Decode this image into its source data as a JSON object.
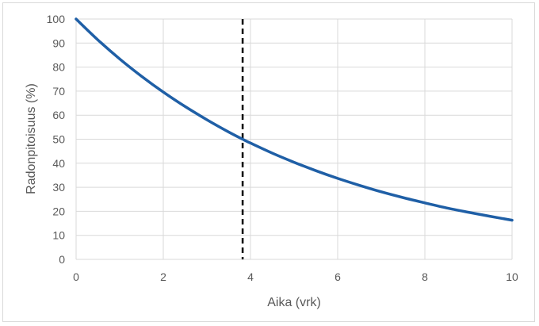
{
  "chart_data": {
    "type": "line",
    "title": "",
    "xlabel": "Aika (vrk)",
    "ylabel": "Radonpitoisuus (%)",
    "xlim": [
      0,
      10
    ],
    "ylim": [
      0,
      100
    ],
    "x_ticks": [
      "0",
      "2",
      "4",
      "6",
      "8",
      "10"
    ],
    "y_ticks": [
      "0",
      "10",
      "20",
      "30",
      "40",
      "50",
      "60",
      "70",
      "80",
      "90",
      "100"
    ],
    "grid": true,
    "legend": "none",
    "series": [
      {
        "color": "#1f5fa6",
        "style": "smooth",
        "x": [
          0,
          0.5,
          1,
          1.5,
          2,
          2.5,
          3,
          3.5,
          3.82,
          4,
          4.5,
          5,
          5.5,
          6,
          6.5,
          7,
          7.5,
          8,
          8.5,
          9,
          9.5,
          10
        ],
        "y": [
          100,
          91.3,
          83.4,
          76.2,
          69.6,
          63.6,
          58.1,
          53.0,
          50.0,
          48.4,
          44.2,
          40.4,
          36.9,
          33.7,
          30.8,
          28.1,
          25.7,
          23.5,
          21.4,
          19.6,
          17.9,
          16.3
        ]
      }
    ],
    "reference_lines": [
      {
        "orientation": "vertical",
        "x": 3.82,
        "color": "#000000",
        "style": "dashed"
      }
    ]
  }
}
